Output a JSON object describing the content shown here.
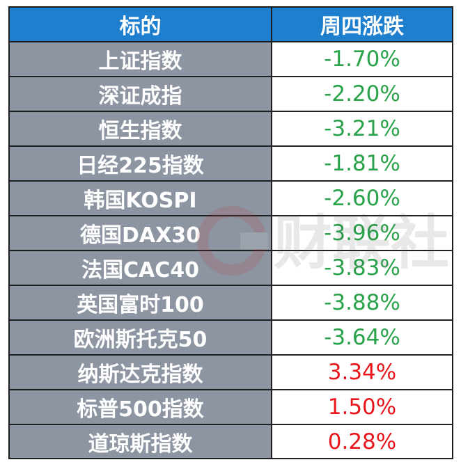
{
  "header": {
    "name_label": "标的",
    "change_label": "周四涨跌"
  },
  "colors": {
    "header_bg": "#1f7fcf",
    "name_bg": "#8c95a1",
    "down": "#2aa24a",
    "up": "#e8161c"
  },
  "rows": [
    {
      "name": "上证指数",
      "change": "-1.70%",
      "direction": "down"
    },
    {
      "name": "深证成指",
      "change": "-2.20%",
      "direction": "down"
    },
    {
      "name": "恒生指数",
      "change": "-3.21%",
      "direction": "down"
    },
    {
      "name": "日经225指数",
      "change": "-1.81%",
      "direction": "down"
    },
    {
      "name": "韩国KOSPI",
      "change": "-2.60%",
      "direction": "down"
    },
    {
      "name": "德国DAX30",
      "change": "-3.96%",
      "direction": "down"
    },
    {
      "name": "法国CAC40",
      "change": "-3.83%",
      "direction": "down"
    },
    {
      "name": "英国富时100",
      "change": "-3.88%",
      "direction": "down"
    },
    {
      "name": "欧洲斯托克50",
      "change": "-3.64%",
      "direction": "down"
    },
    {
      "name": "纳斯达克指数",
      "change": "3.34%",
      "direction": "up"
    },
    {
      "name": "标普500指数",
      "change": "1.50%",
      "direction": "up"
    },
    {
      "name": "道琼斯指数",
      "change": "0.28%",
      "direction": "up"
    }
  ],
  "watermark": {
    "text": "财联社",
    "icon": "cailian-logo-icon"
  }
}
